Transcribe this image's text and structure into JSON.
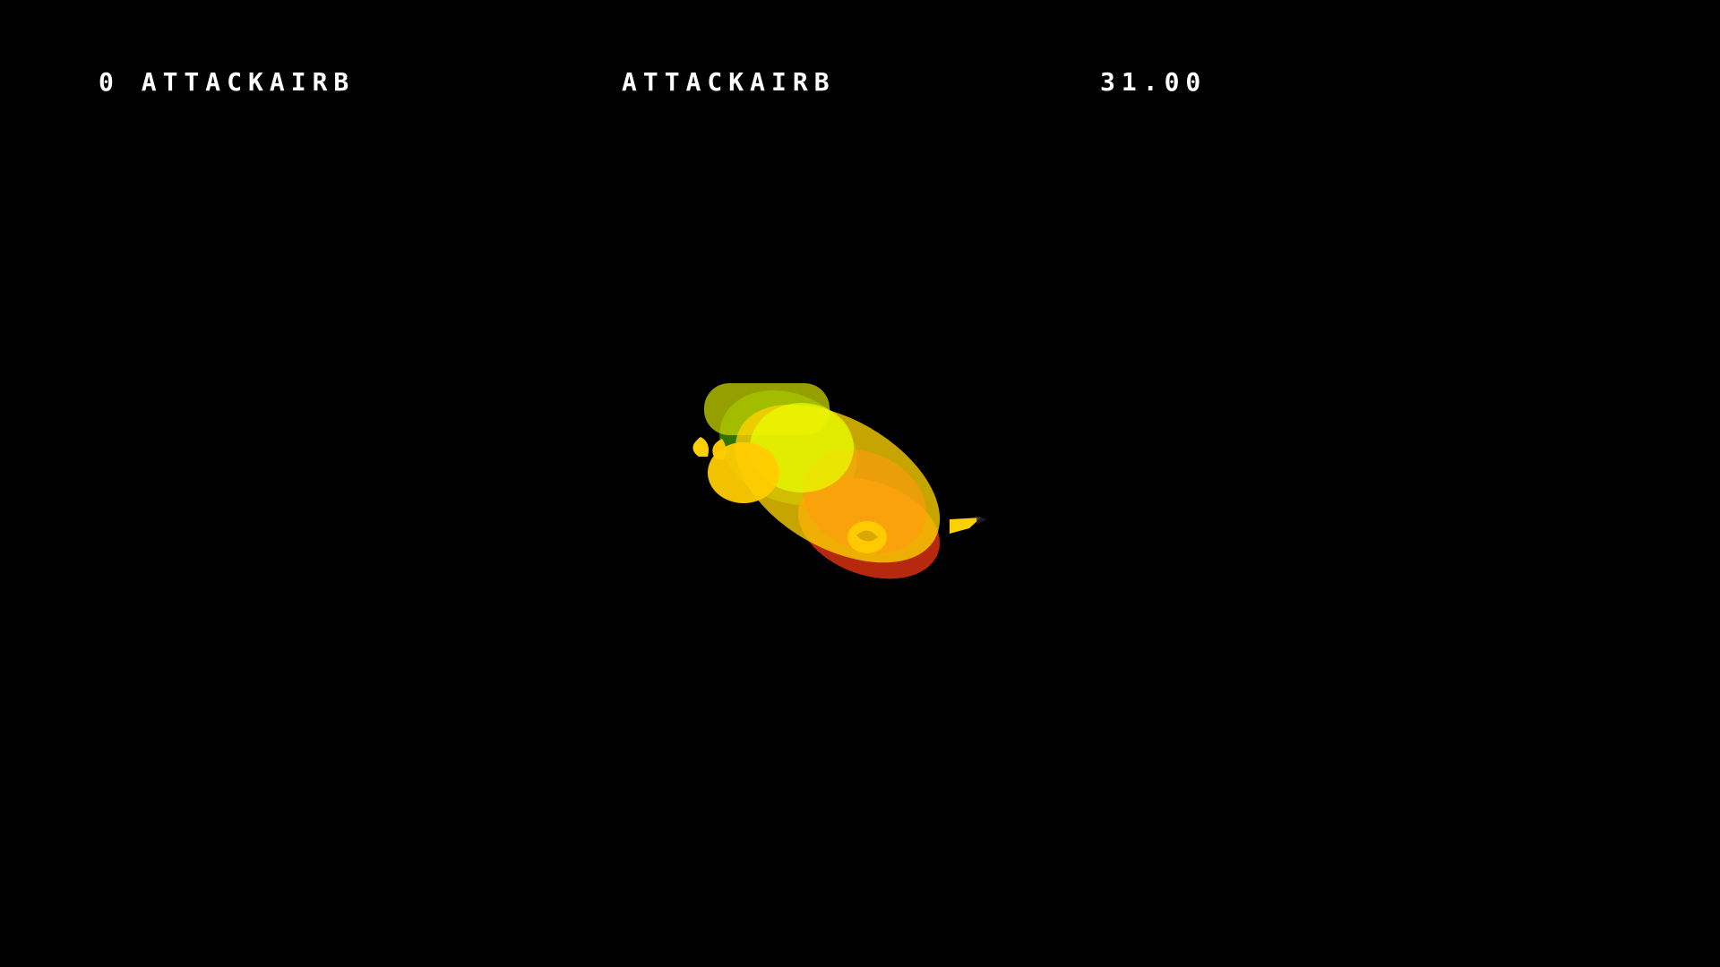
{
  "hud": {
    "frame_and_action": "0 ATTACKAIRB",
    "action_name": "ATTACKAIRB",
    "frame_value": "31.00"
  },
  "scene": {
    "background_color": "#000000",
    "hitbox_colors": {
      "active": "#e8ff00",
      "body": "#ffd400",
      "hurt": "#d63010",
      "intangible": "#5ad400"
    }
  }
}
